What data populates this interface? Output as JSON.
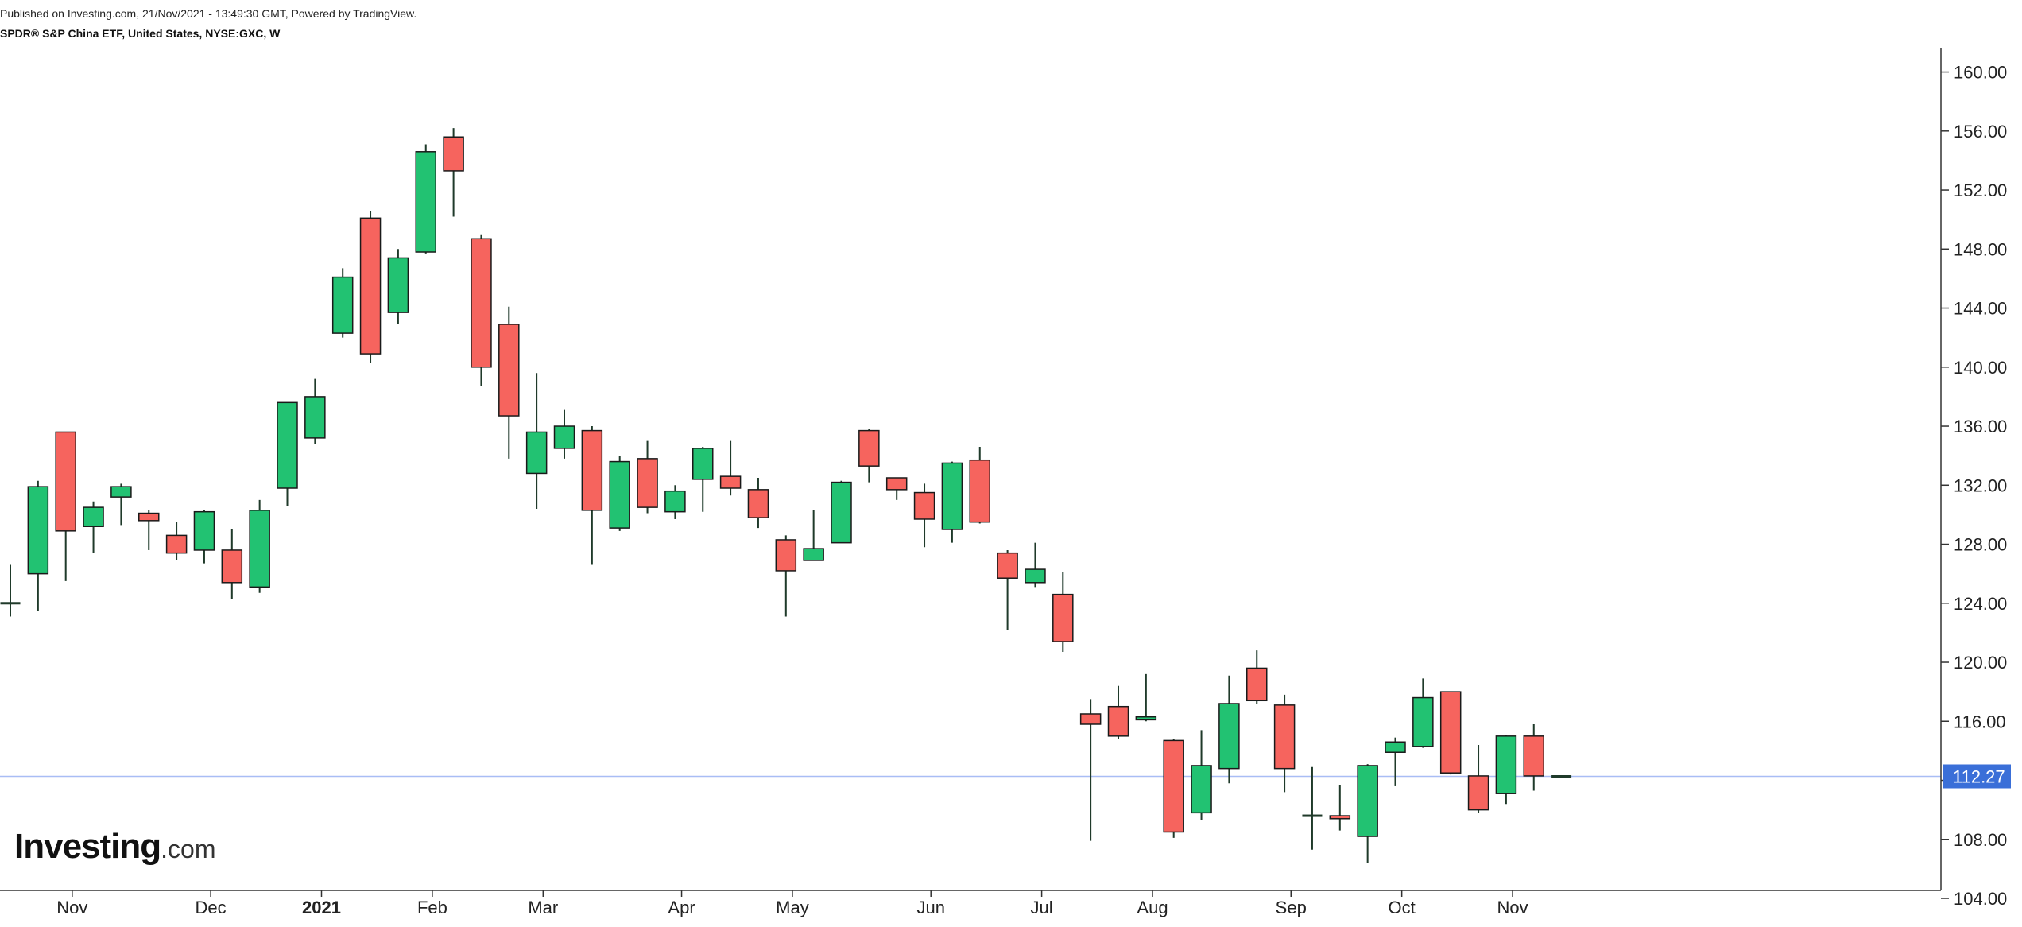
{
  "header": {
    "published": "Published on Investing.com, 21/Nov/2021 - 13:49:30 GMT, Powered by TradingView.",
    "symbol": "SPDR® S&P China ETF, United States, NYSE:GXC, W"
  },
  "logo": {
    "main": "Investing",
    "suffix": ".com"
  },
  "colors": {
    "up": "#22c272",
    "down": "#f6645e",
    "wick": "#1f3a2a",
    "axis": "#333333",
    "last_price_line": "#a9bdf5",
    "last_price_bg": "#3a6fd8"
  },
  "chart_data": {
    "type": "candlestick",
    "title": "SPDR® S&P China ETF, United States, NYSE:GXC, W",
    "interval": "W",
    "ylim": [
      104,
      161
    ],
    "y_ticks": [
      "160.00",
      "156.00",
      "152.00",
      "148.00",
      "144.00",
      "140.00",
      "136.00",
      "132.00",
      "128.00",
      "124.00",
      "120.00",
      "116.00",
      "112.00",
      "108.00",
      "104.00"
    ],
    "x_labels": [
      {
        "label": "Nov",
        "index": 1,
        "bold": false
      },
      {
        "label": "Dec",
        "index": 6,
        "bold": false
      },
      {
        "label": "2021",
        "index": 10,
        "bold": true
      },
      {
        "label": "Feb",
        "index": 14,
        "bold": false
      },
      {
        "label": "Mar",
        "index": 18,
        "bold": false
      },
      {
        "label": "Apr",
        "index": 23,
        "bold": false
      },
      {
        "label": "May",
        "index": 27,
        "bold": false
      },
      {
        "label": "Jun",
        "index": 32,
        "bold": false
      },
      {
        "label": "Jul",
        "index": 36,
        "bold": false
      },
      {
        "label": "Aug",
        "index": 40,
        "bold": false
      },
      {
        "label": "Sep",
        "index": 45,
        "bold": false
      },
      {
        "label": "Oct",
        "index": 49,
        "bold": false
      },
      {
        "label": "Nov",
        "index": 53,
        "bold": false
      }
    ],
    "last_price": 112.27,
    "last_price_label": "112.27",
    "candles": [
      {
        "o": 123.9,
        "h": 126.6,
        "l": 123.1,
        "c": 124.0
      },
      {
        "o": 126.0,
        "h": 132.3,
        "l": 123.5,
        "c": 131.9
      },
      {
        "o": 135.6,
        "h": 135.6,
        "l": 125.5,
        "c": 128.9
      },
      {
        "o": 129.2,
        "h": 130.9,
        "l": 127.4,
        "c": 130.5
      },
      {
        "o": 131.2,
        "h": 132.1,
        "l": 129.3,
        "c": 131.9
      },
      {
        "o": 130.1,
        "h": 130.3,
        "l": 127.6,
        "c": 129.6
      },
      {
        "o": 128.6,
        "h": 129.5,
        "l": 126.9,
        "c": 127.4
      },
      {
        "o": 127.6,
        "h": 130.3,
        "l": 126.7,
        "c": 130.2
      },
      {
        "o": 127.6,
        "h": 129.0,
        "l": 124.3,
        "c": 125.4
      },
      {
        "o": 125.1,
        "h": 131.0,
        "l": 124.7,
        "c": 130.3
      },
      {
        "o": 131.8,
        "h": 137.6,
        "l": 130.6,
        "c": 137.6
      },
      {
        "o": 135.2,
        "h": 139.2,
        "l": 134.8,
        "c": 138.0
      },
      {
        "o": 142.3,
        "h": 146.7,
        "l": 142.0,
        "c": 146.1
      },
      {
        "o": 150.1,
        "h": 150.6,
        "l": 140.3,
        "c": 140.9
      },
      {
        "o": 143.7,
        "h": 148.0,
        "l": 142.9,
        "c": 147.4
      },
      {
        "o": 147.8,
        "h": 155.1,
        "l": 147.7,
        "c": 154.6
      },
      {
        "o": 155.6,
        "h": 156.2,
        "l": 150.2,
        "c": 153.3
      },
      {
        "o": 148.7,
        "h": 149.0,
        "l": 138.7,
        "c": 140.0
      },
      {
        "o": 142.9,
        "h": 144.1,
        "l": 133.8,
        "c": 136.7
      },
      {
        "o": 132.8,
        "h": 139.6,
        "l": 130.4,
        "c": 135.6
      },
      {
        "o": 134.5,
        "h": 137.1,
        "l": 133.8,
        "c": 136.0
      },
      {
        "o": 135.7,
        "h": 136.0,
        "l": 126.6,
        "c": 130.3
      },
      {
        "o": 129.1,
        "h": 134.0,
        "l": 128.9,
        "c": 133.6
      },
      {
        "o": 133.8,
        "h": 135.0,
        "l": 130.1,
        "c": 130.5
      },
      {
        "o": 130.2,
        "h": 132.0,
        "l": 129.7,
        "c": 131.6
      },
      {
        "o": 132.4,
        "h": 134.6,
        "l": 130.2,
        "c": 134.5
      },
      {
        "o": 132.6,
        "h": 135.0,
        "l": 131.3,
        "c": 131.8
      },
      {
        "o": 131.7,
        "h": 132.5,
        "l": 129.1,
        "c": 129.8
      },
      {
        "o": 128.3,
        "h": 128.6,
        "l": 123.1,
        "c": 126.2
      },
      {
        "o": 126.9,
        "h": 130.3,
        "l": 126.9,
        "c": 127.7
      },
      {
        "o": 128.1,
        "h": 132.3,
        "l": 128.1,
        "c": 132.2
      },
      {
        "o": 135.7,
        "h": 135.8,
        "l": 132.2,
        "c": 133.3
      },
      {
        "o": 132.5,
        "h": 132.5,
        "l": 131.0,
        "c": 131.7
      },
      {
        "o": 131.5,
        "h": 132.1,
        "l": 127.8,
        "c": 129.7
      },
      {
        "o": 129.0,
        "h": 133.6,
        "l": 128.1,
        "c": 133.5
      },
      {
        "o": 133.7,
        "h": 134.6,
        "l": 129.4,
        "c": 129.5
      },
      {
        "o": 127.4,
        "h": 127.6,
        "l": 122.2,
        "c": 125.7
      },
      {
        "o": 125.4,
        "h": 128.1,
        "l": 125.1,
        "c": 126.3
      },
      {
        "o": 124.6,
        "h": 126.1,
        "l": 120.7,
        "c": 121.4
      },
      {
        "o": 116.5,
        "h": 117.5,
        "l": 107.9,
        "c": 115.8
      },
      {
        "o": 117.0,
        "h": 118.4,
        "l": 114.8,
        "c": 115.0
      },
      {
        "o": 116.1,
        "h": 119.2,
        "l": 116.0,
        "c": 116.3
      },
      {
        "o": 114.7,
        "h": 114.8,
        "l": 108.1,
        "c": 108.5
      },
      {
        "o": 109.8,
        "h": 115.4,
        "l": 109.3,
        "c": 113.0
      },
      {
        "o": 112.8,
        "h": 119.1,
        "l": 111.8,
        "c": 117.2
      },
      {
        "o": 119.6,
        "h": 120.8,
        "l": 117.2,
        "c": 117.4
      },
      {
        "o": 117.1,
        "h": 117.8,
        "l": 111.2,
        "c": 112.8
      },
      {
        "o": 109.5,
        "h": 112.9,
        "l": 107.3,
        "c": 109.6
      },
      {
        "o": 109.6,
        "h": 111.7,
        "l": 108.6,
        "c": 109.4
      },
      {
        "o": 108.2,
        "h": 113.1,
        "l": 106.4,
        "c": 113.0
      },
      {
        "o": 113.9,
        "h": 114.9,
        "l": 111.6,
        "c": 114.6
      },
      {
        "o": 114.3,
        "h": 118.9,
        "l": 114.2,
        "c": 117.6
      },
      {
        "o": 118.0,
        "h": 118.0,
        "l": 112.4,
        "c": 112.5
      },
      {
        "o": 112.3,
        "h": 114.4,
        "l": 109.8,
        "c": 110.0
      },
      {
        "o": 111.1,
        "h": 115.1,
        "l": 110.4,
        "c": 115.0
      },
      {
        "o": 115.0,
        "h": 115.8,
        "l": 111.3,
        "c": 112.3
      },
      {
        "o": 112.27,
        "h": 112.27,
        "l": 112.27,
        "c": 112.27
      }
    ]
  }
}
